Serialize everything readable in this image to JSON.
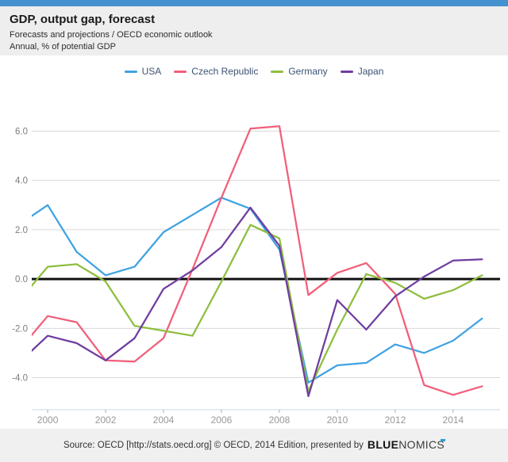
{
  "header": {
    "title": "GDP, output gap, forecast",
    "subtitle": "Forecasts and projections / OECD economic outlook",
    "unit_line": "Annual, % of potential GDP"
  },
  "footer": {
    "source_text": "Source: OECD [http://stats.oecd.org] © OECD, 2014 Edition, presented by",
    "logo_bold": "BLUE",
    "logo_light": "NOMICS"
  },
  "colors": {
    "topbar": "#4590cf",
    "header_bg": "#eeeeee",
    "footer_bg": "#f0f0f0",
    "grid": "#d9d9d9",
    "zero_line": "#111111",
    "axis_line": "#c9d8e4",
    "tick": "#aaaaaa",
    "y_label": "#7d7d7d",
    "x_label": "#999999",
    "legend_text": "#3c5273",
    "logo_accent": "#2d9fd8"
  },
  "chart_data": {
    "type": "line",
    "title": "GDP, output gap, forecast",
    "xlabel": "",
    "ylabel": "% of potential GDP",
    "x": [
      1999,
      2000,
      2001,
      2002,
      2003,
      2004,
      2005,
      2006,
      2007,
      2008,
      2009,
      2010,
      2011,
      2012,
      2013,
      2014,
      2015
    ],
    "series": [
      {
        "name": "USA",
        "color": "#3fa2e2",
        "values": [
          2.2,
          3.0,
          1.1,
          0.15,
          0.5,
          1.9,
          2.6,
          3.3,
          2.85,
          1.2,
          -4.2,
          -3.5,
          -3.4,
          -2.65,
          -3.0,
          -2.5,
          -1.6
        ]
      },
      {
        "name": "Czech Republic",
        "color": "#f15f79",
        "values": [
          -2.9,
          -1.5,
          -1.75,
          -3.3,
          -3.35,
          -2.4,
          0.4,
          3.3,
          6.1,
          6.2,
          -0.65,
          0.25,
          0.65,
          -0.6,
          -4.3,
          -4.7,
          -4.35
        ]
      },
      {
        "name": "Germany",
        "color": "#8ebe3e",
        "values": [
          -0.9,
          0.5,
          0.6,
          -0.1,
          -1.9,
          -2.1,
          -2.3,
          -0.1,
          2.2,
          1.65,
          -4.55,
          -2.05,
          0.2,
          -0.15,
          -0.8,
          -0.45,
          0.15
        ]
      },
      {
        "name": "Japan",
        "color": "#6f3da0",
        "values": [
          -3.4,
          -2.3,
          -2.6,
          -3.3,
          -2.4,
          -0.4,
          0.35,
          1.3,
          2.9,
          1.35,
          -4.75,
          -0.85,
          -2.05,
          -0.7,
          0.1,
          0.75,
          0.8
        ]
      }
    ],
    "xlim": [
      1999.45,
      2015.62
    ],
    "ylim": [
      -5.3,
      7.3
    ],
    "yticks": [
      6,
      4,
      2,
      0,
      -2,
      -4
    ],
    "xticks": [
      2000,
      2002,
      2004,
      2006,
      2008,
      2010,
      2012,
      2014
    ],
    "grid": true,
    "zero_line": true,
    "legend_position": "top",
    "note": "1999 data points lie left of the visible plot edge; lines are clipped at xlim."
  }
}
